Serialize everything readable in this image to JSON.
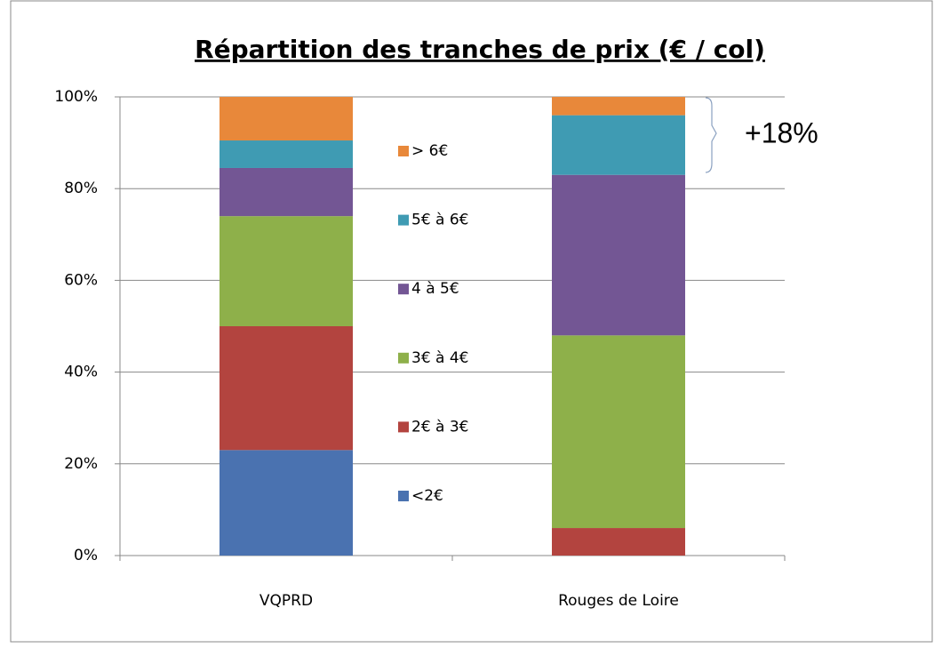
{
  "chart_data": {
    "type": "stacked_bar",
    "title": "Répartition des tranches de prix (€ / col)",
    "categories": [
      "VQPRD",
      "Rouges de Loire"
    ],
    "series": [
      {
        "name": "<2€",
        "color": "#4a72b0",
        "values": [
          23,
          0
        ]
      },
      {
        "name": "2€ à 3€",
        "color": "#b3443f",
        "values": [
          27,
          6
        ]
      },
      {
        "name": "3€ à 4€",
        "color": "#8eb04a",
        "values": [
          24,
          42
        ]
      },
      {
        "name": "4 à 5€",
        "color": "#735694",
        "values": [
          10.5,
          35
        ]
      },
      {
        "name": "5€ à 6€",
        "color": "#3f9bb3",
        "values": [
          6,
          13
        ]
      },
      {
        "name": "> 6€",
        "color": "#e8883a",
        "values": [
          9.5,
          4
        ]
      }
    ],
    "ylim": [
      0,
      100
    ],
    "yticks": [
      {
        "value": 0,
        "label": "0%"
      },
      {
        "value": 20,
        "label": "20%"
      },
      {
        "value": 40,
        "label": "40%"
      },
      {
        "value": 60,
        "label": "60%"
      },
      {
        "value": 80,
        "label": "80%"
      },
      {
        "value": 100,
        "label": "100%"
      }
    ],
    "grid": true,
    "annotation": "+18%"
  }
}
